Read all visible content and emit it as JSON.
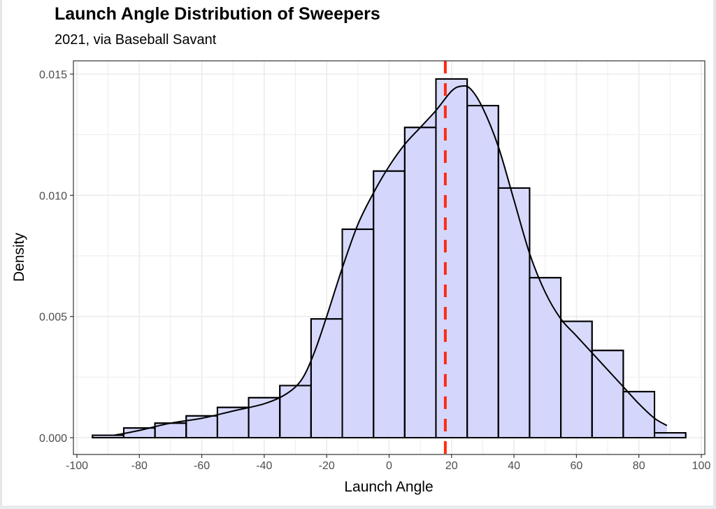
{
  "title": "Launch Angle Distribution of Sweepers",
  "subtitle": "2021, via Baseball Savant",
  "colors": {
    "bar_fill": "#d4d6fb",
    "bar_stroke": "#000033",
    "density_line": "#000000",
    "reference_line": "#ff2a10",
    "grid": "#ebebeb",
    "panel_border": "#333333"
  },
  "chart_data": {
    "type": "bar",
    "subtype": "histogram_with_density",
    "title": "Launch Angle Distribution of Sweepers",
    "subtitle": "2021, via Baseball Savant",
    "xlabel": "Launch Angle",
    "ylabel": "Density",
    "xlim": [
      -100,
      100
    ],
    "ylim": [
      0,
      0.015
    ],
    "x_ticks": [
      -100,
      -80,
      -60,
      -40,
      -20,
      0,
      20,
      40,
      60,
      80,
      100
    ],
    "x_tick_labels": [
      "-100",
      "-80",
      "-60",
      "-40",
      "-20",
      "0",
      "20",
      "40",
      "60",
      "80",
      "100"
    ],
    "y_ticks": [
      0,
      0.005,
      0.01,
      0.015
    ],
    "y_tick_labels": [
      "0.000",
      "0.005",
      "0.010",
      "0.015"
    ],
    "grid": true,
    "bin_width": 10,
    "bins": [
      {
        "start": -95,
        "end": -85,
        "density": 0.0001
      },
      {
        "start": -85,
        "end": -75,
        "density": 0.0004
      },
      {
        "start": -75,
        "end": -65,
        "density": 0.0006
      },
      {
        "start": -65,
        "end": -55,
        "density": 0.0009
      },
      {
        "start": -55,
        "end": -45,
        "density": 0.00125
      },
      {
        "start": -45,
        "end": -35,
        "density": 0.00165
      },
      {
        "start": -35,
        "end": -25,
        "density": 0.00215
      },
      {
        "start": -25,
        "end": -15,
        "density": 0.0049
      },
      {
        "start": -15,
        "end": -5,
        "density": 0.0086
      },
      {
        "start": -5,
        "end": 5,
        "density": 0.011
      },
      {
        "start": 5,
        "end": 15,
        "density": 0.0128
      },
      {
        "start": 15,
        "end": 25,
        "density": 0.0148
      },
      {
        "start": 25,
        "end": 35,
        "density": 0.0137
      },
      {
        "start": 35,
        "end": 45,
        "density": 0.0103
      },
      {
        "start": 45,
        "end": 55,
        "density": 0.0066
      },
      {
        "start": 55,
        "end": 65,
        "density": 0.0048
      },
      {
        "start": 65,
        "end": 75,
        "density": 0.0036
      },
      {
        "start": 75,
        "end": 85,
        "density": 0.0019
      },
      {
        "start": 85,
        "end": 95,
        "density": 0.0002
      }
    ],
    "density_curve": {
      "x": [
        -88,
        -80,
        -70,
        -60,
        -50,
        -40,
        -33,
        -28,
        -24,
        -20,
        -15,
        -10,
        -5,
        0,
        5,
        10,
        15,
        20,
        23,
        26,
        30,
        35,
        40,
        45,
        50,
        55,
        60,
        65,
        70,
        75,
        80,
        85,
        89
      ],
      "y": [
        0.0001,
        0.0003,
        0.0006,
        0.0008,
        0.0011,
        0.0014,
        0.0018,
        0.0024,
        0.0035,
        0.005,
        0.007,
        0.0088,
        0.0101,
        0.0112,
        0.0121,
        0.0128,
        0.0135,
        0.0143,
        0.0145,
        0.0144,
        0.0136,
        0.012,
        0.0098,
        0.0076,
        0.006,
        0.0049,
        0.0042,
        0.0035,
        0.0028,
        0.0021,
        0.0014,
        0.0008,
        0.0005
      ]
    },
    "reference_line": {
      "x": 18,
      "style": "dashed",
      "color": "#ff2a10",
      "orientation": "vertical"
    }
  }
}
